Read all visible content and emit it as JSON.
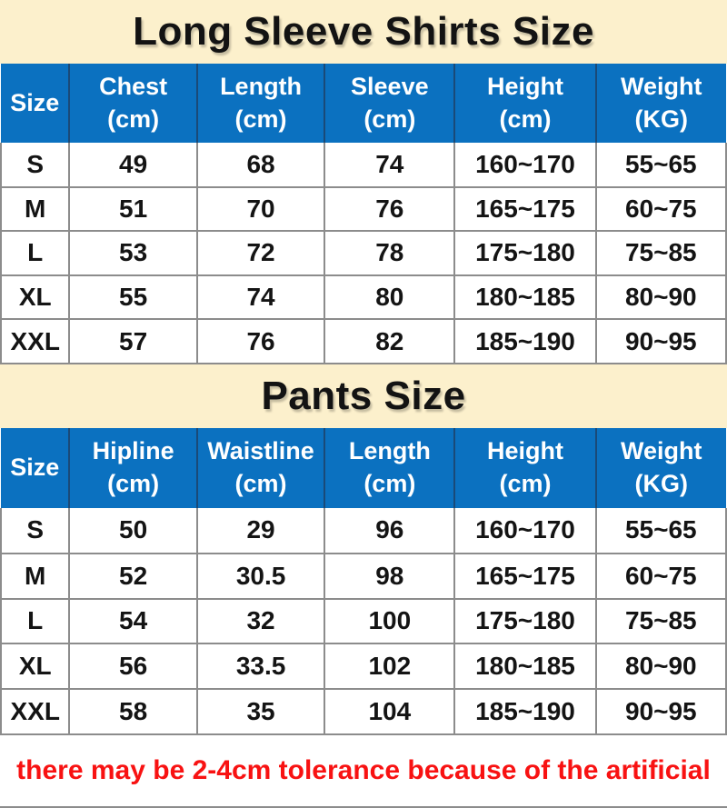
{
  "colors": {
    "banner_cream": "#FCF0CC",
    "header_blue": "#0B71C0",
    "header_divider_navy": "#1A4A78",
    "grid_gray": "#8C8C8C",
    "note_red": "#F81212",
    "text_black": "#141414"
  },
  "sections": [
    {
      "title": "Long Sleeve Shirts Size",
      "columns": [
        {
          "label": "Size"
        },
        {
          "label": "Chest",
          "unit": "(cm)"
        },
        {
          "label": "Length",
          "unit": "(cm)"
        },
        {
          "label": "Sleeve",
          "unit": "(cm)"
        },
        {
          "label": "Height",
          "unit": "(cm)"
        },
        {
          "label": "Weight",
          "unit": "(KG)"
        }
      ],
      "rows": [
        [
          "S",
          "49",
          "68",
          "74",
          "160~170",
          "55~65"
        ],
        [
          "M",
          "51",
          "70",
          "76",
          "165~175",
          "60~75"
        ],
        [
          "L",
          "53",
          "72",
          "78",
          "175~180",
          "75~85"
        ],
        [
          "XL",
          "55",
          "74",
          "80",
          "180~185",
          "80~90"
        ],
        [
          "XXL",
          "57",
          "76",
          "82",
          "185~190",
          "90~95"
        ]
      ]
    },
    {
      "title": "Pants Size",
      "columns": [
        {
          "label": "Size"
        },
        {
          "label": "Hipline",
          "unit": "(cm)"
        },
        {
          "label": "Waistline",
          "unit": "(cm)"
        },
        {
          "label": "Length",
          "unit": "(cm)"
        },
        {
          "label": "Height",
          "unit": "(cm)"
        },
        {
          "label": "Weight",
          "unit": "(KG)"
        }
      ],
      "rows": [
        [
          "S",
          "50",
          "29",
          "96",
          "160~170",
          "55~65"
        ],
        [
          "M",
          "52",
          "30.5",
          "98",
          "165~175",
          "60~75"
        ],
        [
          "L",
          "54",
          "32",
          "100",
          "175~180",
          "75~85"
        ],
        [
          "XL",
          "56",
          "33.5",
          "102",
          "180~185",
          "80~90"
        ],
        [
          "XXL",
          "58",
          "35",
          "104",
          "185~190",
          "90~95"
        ]
      ]
    }
  ],
  "note": "there may be 2-4cm tolerance because of the artificial"
}
